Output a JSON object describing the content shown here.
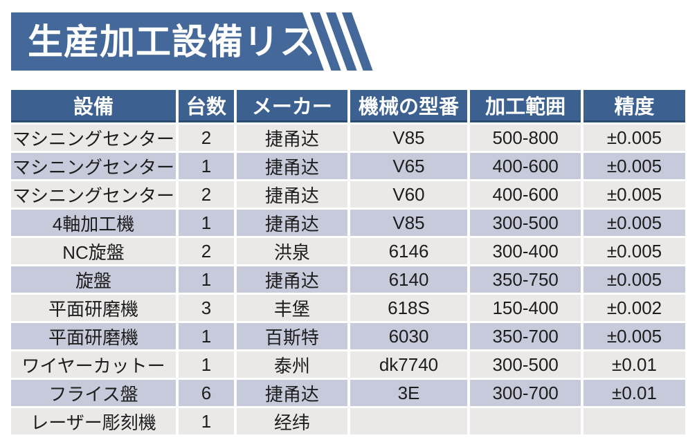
{
  "banner": {
    "title": "生産加工設備リスト",
    "bg_color": "#44689a",
    "stripe_count": 3
  },
  "table": {
    "header_bg": "#3c6191",
    "header_edge": "#2a4a72",
    "row_light": "#ebe9e7",
    "row_shaded": "#c6cada",
    "columns": [
      {
        "key": "equipment",
        "label": "設備"
      },
      {
        "key": "count",
        "label": "台数"
      },
      {
        "key": "maker",
        "label": "メーカー"
      },
      {
        "key": "model",
        "label": "機械の型番"
      },
      {
        "key": "range",
        "label": "加工範囲"
      },
      {
        "key": "precision",
        "label": "精度"
      }
    ],
    "rows": [
      [
        "マシニングセンター",
        "2",
        "捷甬达",
        "V85",
        "500-800",
        "±0.005"
      ],
      [
        "マシニングセンター",
        "1",
        "捷甬达",
        "V65",
        "400-600",
        "±0.005"
      ],
      [
        "マシニングセンター",
        "2",
        "捷甬达",
        "V60",
        "400-600",
        "±0.005"
      ],
      [
        "4軸加工機",
        "1",
        "捷甬达",
        "V85",
        "300-500",
        "±0.005"
      ],
      [
        "NC旋盤",
        "2",
        "洪泉",
        "6146",
        "300-400",
        "±0.005"
      ],
      [
        "旋盤",
        "1",
        "捷甬达",
        "6140",
        "350-750",
        "±0.005"
      ],
      [
        "平面研磨機",
        "3",
        "丰堡",
        "618S",
        "150-400",
        "±0.002"
      ],
      [
        "平面研磨機",
        "1",
        "百斯特",
        "6030",
        "350-700",
        "±0.005"
      ],
      [
        "ワイヤーカットー",
        "1",
        "泰州",
        "dk7740",
        "300-500",
        "±0.01"
      ],
      [
        "フライス盤",
        "6",
        "捷甬达",
        "3E",
        "300-700",
        "±0.01"
      ],
      [
        "レーザー彫刻機",
        "1",
        "经纬",
        "",
        "",
        ""
      ]
    ]
  }
}
